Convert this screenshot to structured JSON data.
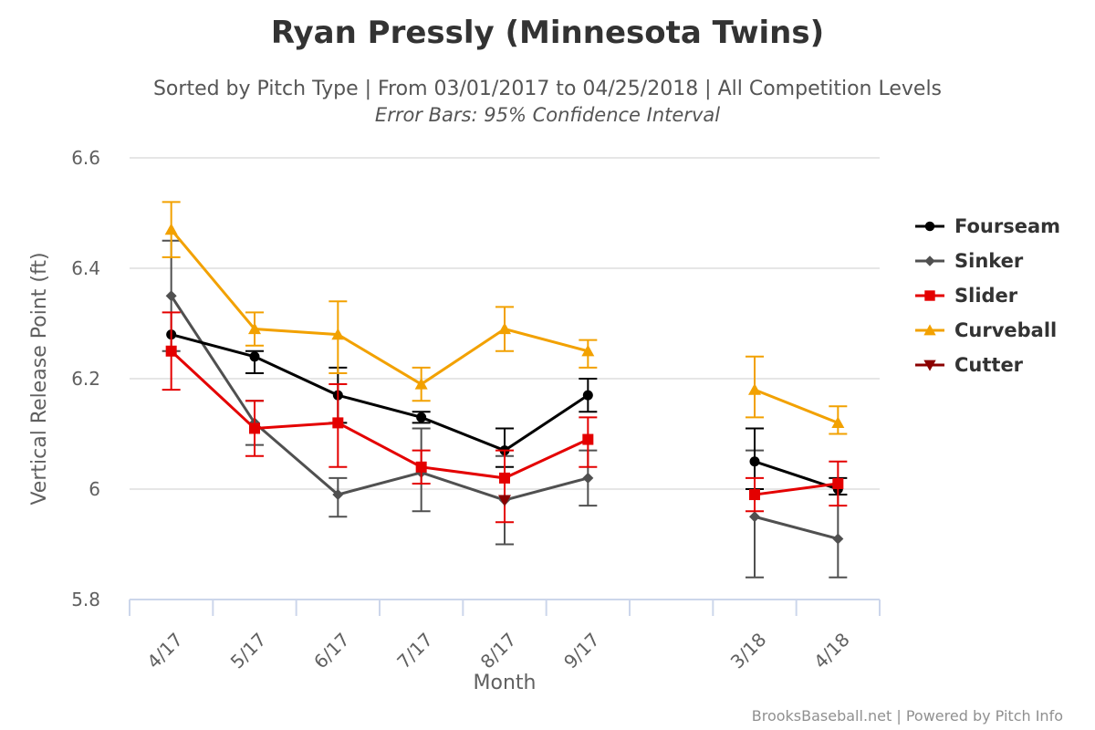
{
  "chart_data": {
    "type": "line",
    "title": "Ryan Pressly (Minnesota Twins)",
    "subtitle": "Sorted by Pitch Type | From 03/01/2017 to 04/25/2018 | All Competition Levels",
    "subtitle2": "Error Bars: 95% Confidence Interval",
    "xlabel": "Month",
    "ylabel": "Vertical Release Point (ft)",
    "categories": [
      "4/17",
      "5/17",
      "6/17",
      "7/17",
      "8/17",
      "9/17",
      "",
      "3/18",
      "4/18"
    ],
    "ylim": [
      5.8,
      6.6
    ],
    "yticks": [
      5.8,
      6,
      6.2,
      6.4,
      6.6
    ],
    "ytick_labels": [
      "5.8",
      "6",
      "6.2",
      "6.4",
      "6.6"
    ],
    "grid": true,
    "legend_position": "right",
    "credits": "BrooksBaseball.net | Powered by Pitch Info",
    "series": [
      {
        "name": "Fourseam",
        "color": "#000000",
        "marker": "circle",
        "values": [
          6.28,
          6.24,
          6.17,
          6.13,
          6.07,
          6.17,
          null,
          6.05,
          6.0
        ],
        "err_low": [
          null,
          6.21,
          6.12,
          6.12,
          6.04,
          6.14,
          null,
          6.0,
          5.99
        ],
        "err_high": [
          null,
          6.25,
          6.22,
          6.14,
          6.11,
          6.2,
          null,
          6.11,
          6.02
        ]
      },
      {
        "name": "Sinker",
        "color": "#505050",
        "marker": "diamond",
        "values": [
          6.35,
          6.12,
          5.99,
          6.03,
          5.98,
          6.02,
          null,
          5.95,
          5.91
        ],
        "err_low": [
          6.25,
          6.08,
          5.95,
          5.96,
          5.9,
          5.97,
          null,
          5.84,
          5.84
        ],
        "err_high": [
          6.45,
          6.16,
          6.02,
          6.11,
          6.06,
          6.07,
          null,
          6.07,
          5.99
        ]
      },
      {
        "name": "Slider",
        "color": "#e40000",
        "marker": "square",
        "values": [
          6.25,
          6.11,
          6.12,
          6.04,
          6.02,
          6.09,
          null,
          5.99,
          6.01
        ],
        "err_low": [
          6.18,
          6.06,
          6.04,
          6.01,
          5.94,
          6.04,
          null,
          5.96,
          5.97
        ],
        "err_high": [
          6.32,
          6.16,
          6.19,
          6.07,
          6.07,
          6.13,
          null,
          6.02,
          6.05
        ]
      },
      {
        "name": "Curveball",
        "color": "#f2a100",
        "marker": "triangle",
        "values": [
          6.47,
          6.29,
          6.28,
          6.19,
          6.29,
          6.25,
          null,
          6.18,
          6.12
        ],
        "err_low": [
          6.42,
          6.26,
          6.21,
          6.16,
          6.25,
          6.22,
          null,
          6.13,
          6.1
        ],
        "err_high": [
          6.52,
          6.32,
          6.34,
          6.22,
          6.33,
          6.27,
          null,
          6.24,
          6.15
        ]
      },
      {
        "name": "Cutter",
        "color": "#8b0000",
        "marker": "triangle-down",
        "values": [
          null,
          null,
          null,
          null,
          5.98,
          null,
          null,
          null,
          null
        ],
        "err_low": [
          null,
          null,
          null,
          null,
          null,
          null,
          null,
          null,
          null
        ],
        "err_high": [
          null,
          null,
          null,
          null,
          null,
          null,
          null,
          null,
          null
        ]
      }
    ]
  }
}
